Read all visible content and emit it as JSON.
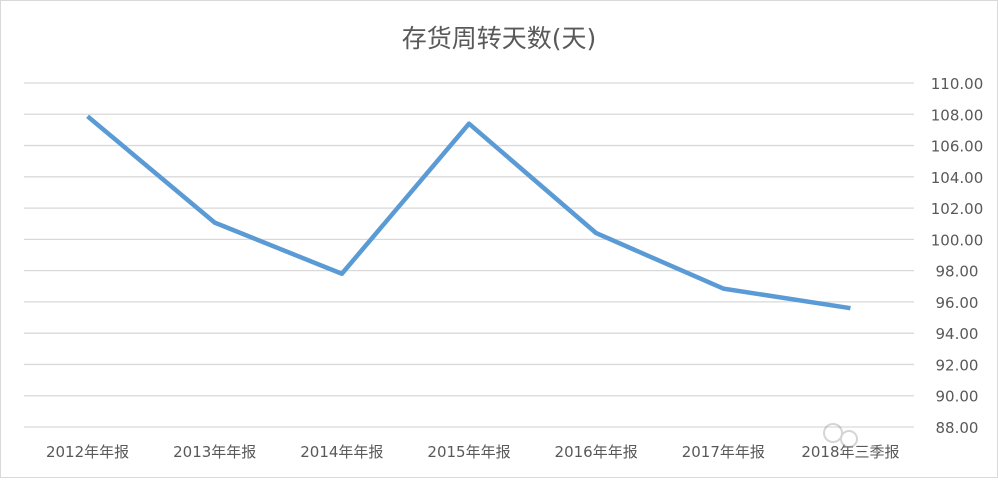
{
  "chart_data": {
    "type": "line",
    "title": "存货周转天数(天)",
    "categories": [
      "2012年年报",
      "2013年年报",
      "2014年年报",
      "2015年年报",
      "2016年年报",
      "2017年年报",
      "2018年三季报"
    ],
    "series": [
      {
        "values": [
          107.87,
          101.07,
          97.8,
          107.4,
          100.4,
          96.85,
          95.6
        ],
        "color": "#5b9bd5"
      }
    ],
    "ylim": [
      88,
      110
    ],
    "yticks": [
      "88.00",
      "90.00",
      "92.00",
      "94.00",
      "96.00",
      "98.00",
      "100.00",
      "102.00",
      "104.00",
      "106.00",
      "108.00",
      "110.00"
    ],
    "y_axis_side": "right",
    "grid": true,
    "legend": "none",
    "xlabel": "",
    "ylabel": ""
  },
  "watermark": {
    "icon": "wechat-logo-icon"
  }
}
